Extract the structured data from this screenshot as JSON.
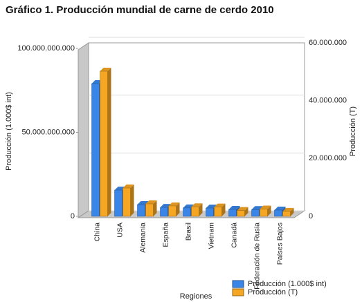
{
  "chart_data": {
    "type": "bar",
    "title": "Gráfico 1. Producción mundial de carne de cerdo 2010",
    "x_label": "Regiones",
    "y_label": "Producción (1.000$ int)",
    "y2_label": "Producción (T)",
    "categories": [
      "China",
      "USA",
      "Alemania",
      "España",
      "Brasil",
      "Vietnam",
      "Canadá",
      "Federación de Rusia",
      "Países Bajos"
    ],
    "series": [
      {
        "name": "Producción (1.000$ int)",
        "color": "#3a86e8",
        "axis": "y",
        "values": [
          79000000000,
          15600000000,
          7000000000,
          5300000000,
          5000000000,
          4900000000,
          4100000000,
          4000000000,
          3700000000
        ]
      },
      {
        "name": "Producción (T)",
        "color": "#f5a623",
        "axis": "y2",
        "values": [
          50200000,
          9800000,
          4300000,
          3600000,
          3300000,
          3200000,
          2000000,
          2500000,
          1700000
        ]
      }
    ],
    "ylim": [
      0,
      100000000000
    ],
    "yticks": [
      0,
      {
        "value": 50000000000,
        "label": "50.000.000.000"
      },
      {
        "value": 100000000000,
        "label": "100.000.000.000"
      }
    ],
    "y2lim": [
      0,
      60000000
    ],
    "y2ticks": [
      0,
      {
        "value": 20000000,
        "label": "20.000.000"
      },
      {
        "value": 40000000,
        "label": "40.000.000"
      },
      {
        "value": 60000000,
        "label": "60.000.000"
      }
    ],
    "grid": true,
    "legend": "bottom-right"
  }
}
